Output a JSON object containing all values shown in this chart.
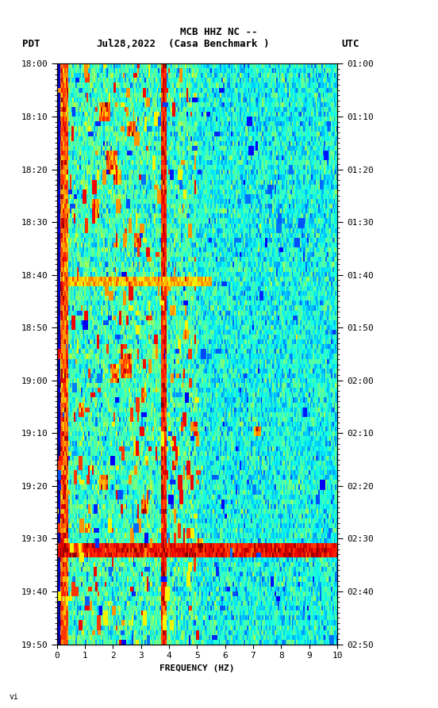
{
  "title_line1": "MCB HHZ NC --",
  "title_line2": "(Casa Benchmark )",
  "date_label": "Jul28,2022",
  "tz_left": "PDT",
  "tz_right": "UTC",
  "xlabel": "FREQUENCY (HZ)",
  "freq_min": 0,
  "freq_max": 10,
  "ytick_pdt": [
    "18:00",
    "18:10",
    "18:20",
    "18:30",
    "18:40",
    "18:50",
    "19:00",
    "19:10",
    "19:20",
    "19:30",
    "19:40",
    "19:50"
  ],
  "ytick_utc": [
    "01:00",
    "01:10",
    "01:20",
    "01:30",
    "01:40",
    "01:50",
    "02:00",
    "02:10",
    "02:20",
    "02:30",
    "02:40",
    "02:50"
  ],
  "background_color": "#ffffff",
  "seed": 12345
}
